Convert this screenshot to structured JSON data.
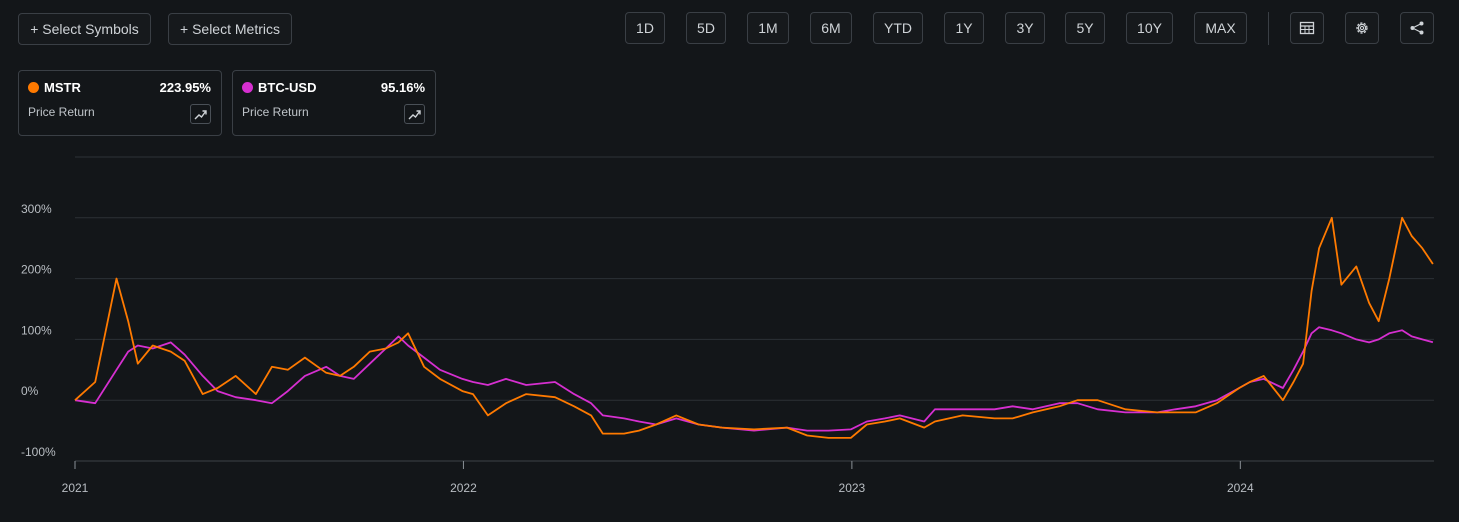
{
  "toolbar": {
    "select_symbols": "+ Select Symbols",
    "select_metrics": "+ Select Metrics",
    "ranges": [
      "1D",
      "5D",
      "1M",
      "6M",
      "YTD",
      "1Y",
      "3Y",
      "5Y",
      "10Y",
      "MAX"
    ],
    "icons": [
      "table-icon",
      "gear-icon",
      "share-icon"
    ]
  },
  "legend": [
    {
      "symbol": "MSTR",
      "value": "223.95%",
      "metric": "Price Return",
      "color": "#ff7a00"
    },
    {
      "symbol": "BTC-USD",
      "value": "95.16%",
      "metric": "Price Return",
      "color": "#d62fd0"
    }
  ],
  "chart_data": {
    "type": "line",
    "title": "",
    "xlabel": "",
    "ylabel": "",
    "x_ticks": [
      "2021",
      "2022",
      "2023",
      "2024"
    ],
    "y_ticks": [
      "300%",
      "200%",
      "100%",
      "0%",
      "-100%"
    ],
    "ylim": [
      -100,
      400
    ],
    "grid": true,
    "x": [
      "2021-01-01",
      "2021-01-20",
      "2021-02-09",
      "2021-02-20",
      "2021-03-01",
      "2021-03-15",
      "2021-04-01",
      "2021-04-14",
      "2021-05-01",
      "2021-05-15",
      "2021-06-01",
      "2021-06-20",
      "2021-07-05",
      "2021-07-20",
      "2021-08-05",
      "2021-08-25",
      "2021-09-07",
      "2021-09-20",
      "2021-10-05",
      "2021-10-20",
      "2021-11-01",
      "2021-11-10",
      "2021-11-25",
      "2021-12-10",
      "2021-12-31",
      "2022-01-10",
      "2022-01-24",
      "2022-02-10",
      "2022-03-01",
      "2022-03-28",
      "2022-04-15",
      "2022-05-01",
      "2022-05-12",
      "2022-06-01",
      "2022-06-15",
      "2022-07-01",
      "2022-07-20",
      "2022-08-10",
      "2022-09-01",
      "2022-10-01",
      "2022-11-01",
      "2022-11-20",
      "2022-12-10",
      "2022-12-31",
      "2023-01-15",
      "2023-02-01",
      "2023-02-15",
      "2023-03-10",
      "2023-03-20",
      "2023-04-15",
      "2023-05-15",
      "2023-06-01",
      "2023-06-20",
      "2023-07-15",
      "2023-08-01",
      "2023-08-20",
      "2023-09-15",
      "2023-10-15",
      "2023-11-01",
      "2023-11-20",
      "2023-12-10",
      "2023-12-31",
      "2024-01-10",
      "2024-01-23",
      "2024-02-10",
      "2024-02-20",
      "2024-02-29",
      "2024-03-08",
      "2024-03-15",
      "2024-03-27",
      "2024-04-05",
      "2024-04-19",
      "2024-05-01",
      "2024-05-10",
      "2024-05-20",
      "2024-06-01",
      "2024-06-10",
      "2024-06-20",
      "2024-06-30"
    ],
    "series": [
      {
        "name": "MSTR",
        "color": "#ff7a00",
        "values": [
          0,
          30,
          200,
          130,
          60,
          90,
          80,
          65,
          10,
          20,
          40,
          10,
          55,
          50,
          70,
          45,
          40,
          55,
          80,
          85,
          95,
          110,
          55,
          35,
          15,
          10,
          -25,
          -5,
          10,
          5,
          -10,
          -25,
          -55,
          -55,
          -50,
          -40,
          -25,
          -40,
          -45,
          -48,
          -45,
          -58,
          -62,
          -62,
          -40,
          -35,
          -30,
          -45,
          -35,
          -25,
          -30,
          -30,
          -20,
          -10,
          0,
          0,
          -15,
          -20,
          -20,
          -20,
          -5,
          20,
          30,
          40,
          0,
          30,
          60,
          180,
          250,
          300,
          190,
          220,
          160,
          130,
          200,
          300,
          270,
          250,
          223.95
        ]
      },
      {
        "name": "BTC-USD",
        "color": "#d62fd0",
        "values": [
          0,
          -5,
          50,
          80,
          90,
          85,
          95,
          75,
          40,
          15,
          5,
          0,
          -5,
          15,
          40,
          55,
          40,
          35,
          60,
          85,
          105,
          90,
          70,
          50,
          35,
          30,
          25,
          35,
          25,
          30,
          10,
          -5,
          -25,
          -30,
          -35,
          -40,
          -30,
          -40,
          -45,
          -50,
          -45,
          -50,
          -50,
          -48,
          -35,
          -30,
          -25,
          -35,
          -15,
          -15,
          -15,
          -10,
          -15,
          -5,
          -5,
          -15,
          -20,
          -20,
          -15,
          -10,
          0,
          20,
          30,
          35,
          20,
          50,
          80,
          110,
          120,
          115,
          110,
          100,
          95,
          100,
          110,
          115,
          105,
          100,
          95.16
        ]
      }
    ]
  }
}
